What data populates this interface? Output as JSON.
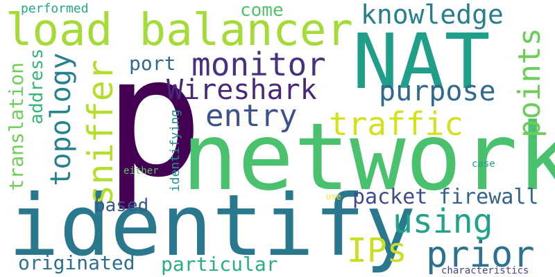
{
  "words": [
    {
      "text": "p",
      "color": "#440154"
    },
    {
      "text": "network",
      "color": "#4ac16d"
    },
    {
      "text": "NAT",
      "color": "#1f9e89"
    },
    {
      "text": "identify",
      "color": "#2a788e"
    },
    {
      "text": "load balancer",
      "color": "#a5db36"
    },
    {
      "text": "Wireshark",
      "color": "#482878"
    },
    {
      "text": "monitor",
      "color": "#46327e"
    },
    {
      "text": "knowledge",
      "color": "#277f8e"
    },
    {
      "text": "traffic",
      "color": "#d2e21b"
    },
    {
      "text": "purpose",
      "color": "#31688e"
    },
    {
      "text": "entry",
      "color": "#3b528b"
    },
    {
      "text": "sniffer",
      "color": "#b5de2b"
    },
    {
      "text": "points",
      "color": "#6ccd5a"
    },
    {
      "text": "topology",
      "color": "#26828e"
    },
    {
      "text": "prior",
      "color": "#2c728e"
    },
    {
      "text": "using",
      "color": "#20a386"
    },
    {
      "text": "IPs",
      "color": "#c8e020"
    },
    {
      "text": "firewall",
      "color": "#33638d"
    },
    {
      "text": "packet",
      "color": "#3e4a89"
    },
    {
      "text": "translation",
      "color": "#6ece58"
    },
    {
      "text": "address",
      "color": "#35b779"
    },
    {
      "text": "originated",
      "color": "#2d708e"
    },
    {
      "text": "particular",
      "color": "#29af7f"
    },
    {
      "text": "based",
      "color": "#38598c"
    },
    {
      "text": "port",
      "color": "#31688e"
    },
    {
      "text": "come",
      "color": "#52c569"
    },
    {
      "text": "performed",
      "color": "#22a884"
    },
    {
      "text": "identifying",
      "color": "#21918c"
    },
    {
      "text": "either",
      "color": "#5ec962"
    },
    {
      "text": "case",
      "color": "#1fa187"
    },
    {
      "text": "use",
      "color": "#fde725"
    },
    {
      "text": "characteristics",
      "color": "#414487"
    }
  ]
}
